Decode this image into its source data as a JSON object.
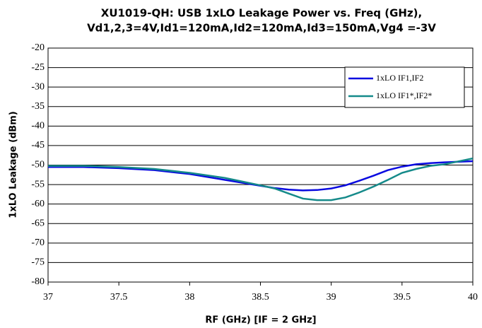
{
  "chart_data": {
    "type": "line",
    "title": [
      "XU1019-QH: USB 1xLO Leakage Power vs. Freq (GHz),",
      "Vd1,2,3=4V,Id1=120mA,Id2=120mA,Id3=150mA,Vg4 =-3V"
    ],
    "x_label": "RF (GHz) [IF = 2 GHz]",
    "y_label": "1xLO Leakage (dBm)",
    "x": [
      37,
      37.25,
      37.5,
      37.75,
      38,
      38.25,
      38.5,
      38.6,
      38.7,
      38.8,
      38.9,
      39,
      39.1,
      39.2,
      39.3,
      39.4,
      39.5,
      39.6,
      39.7,
      39.8,
      40
    ],
    "series": [
      {
        "name": "1xLO IF1,IF2",
        "color": "#0a0ae0",
        "values": [
          -50.5,
          -50.5,
          -50.8,
          -51.3,
          -52.3,
          -53.8,
          -55.3,
          -55.9,
          -56.3,
          -56.5,
          -56.4,
          -56,
          -55.2,
          -54,
          -52.7,
          -51.3,
          -50.4,
          -49.8,
          -49.5,
          -49.3,
          -49
        ]
      },
      {
        "name": "1xLO IF1*,IF2*",
        "color": "#158a8a",
        "values": [
          -50.2,
          -50.2,
          -50.5,
          -51,
          -52,
          -53.3,
          -55.2,
          -56,
          -57.3,
          -58.6,
          -59,
          -59,
          -58.3,
          -57,
          -55.5,
          -53.8,
          -52,
          -51,
          -50.2,
          -49.8,
          -48.3
        ]
      }
    ],
    "xlim": [
      37,
      40
    ],
    "xticks": [
      37,
      37.5,
      38,
      38.5,
      39,
      39.5,
      40
    ],
    "ylim": [
      -80,
      -20
    ],
    "yticks": [
      -80,
      -75,
      -70,
      -65,
      -60,
      -55,
      -50,
      -45,
      -40,
      -35,
      -30,
      -25,
      -20
    ],
    "grid": true,
    "legend": "upper right"
  }
}
